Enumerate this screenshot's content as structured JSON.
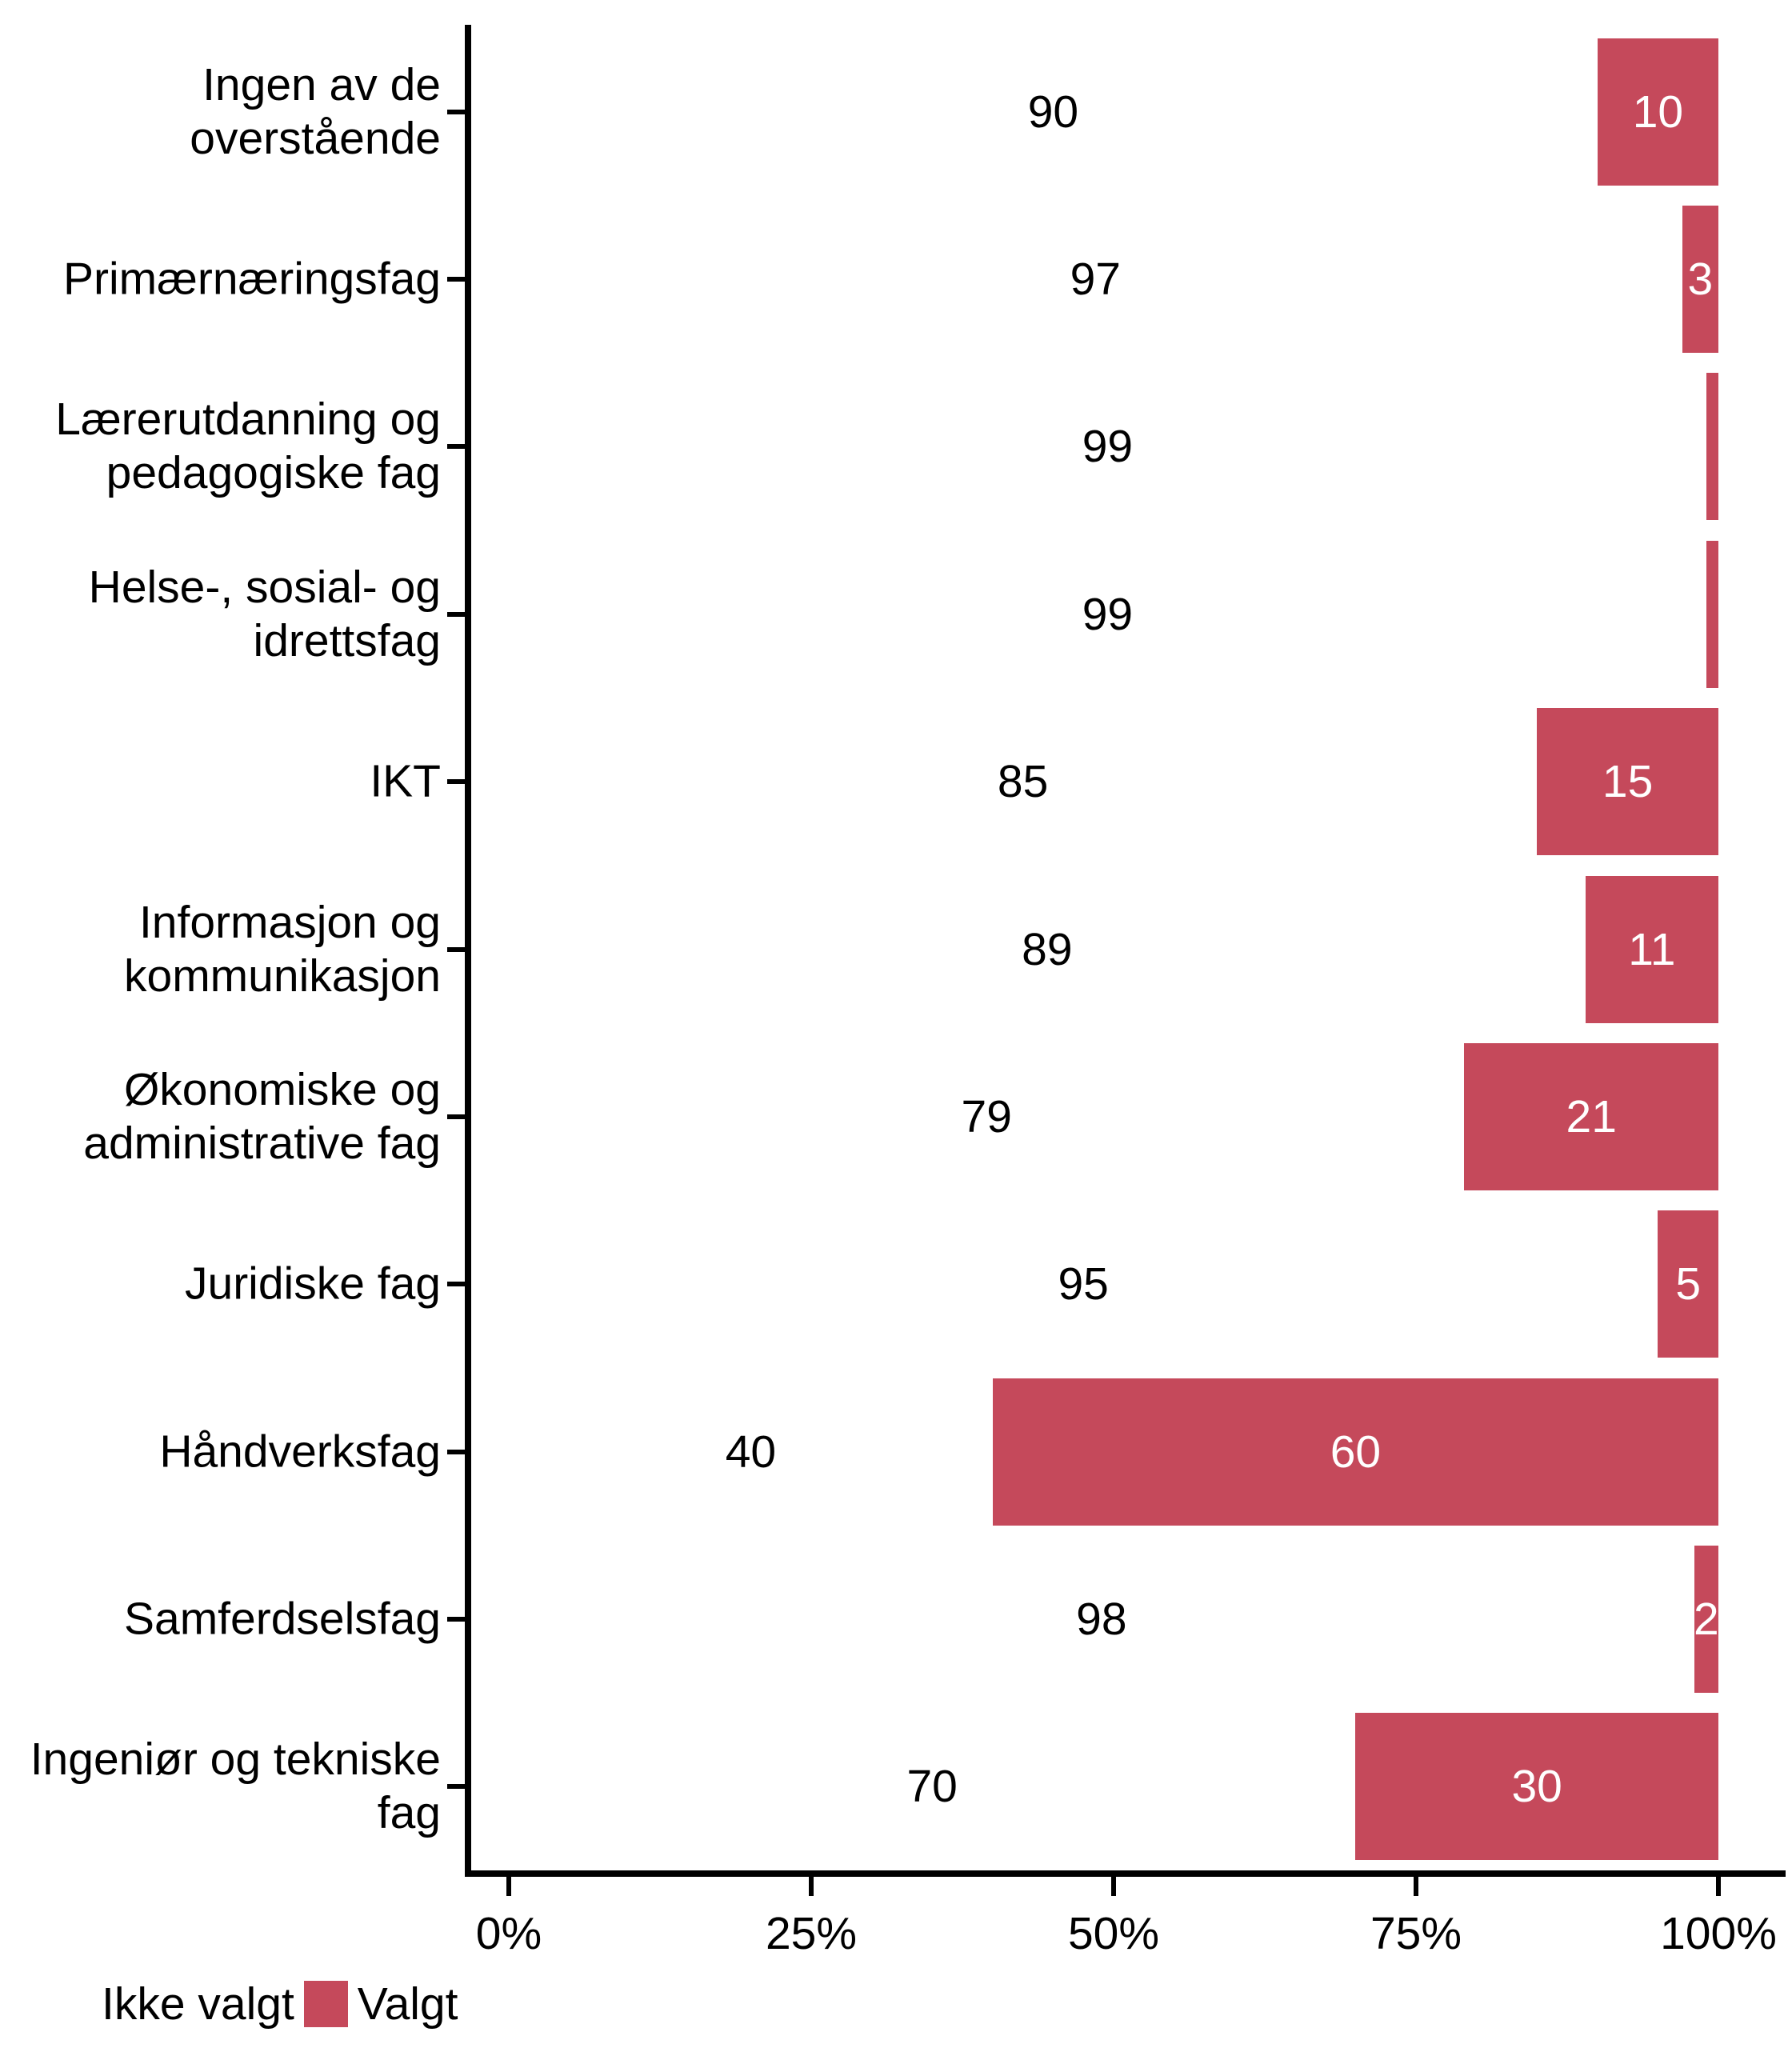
{
  "chart_data": {
    "type": "bar",
    "orientation": "horizontal",
    "stack_mode": "percent",
    "title": "",
    "xlabel": "",
    "ylabel": "",
    "xlim": [
      0,
      100
    ],
    "grid": false,
    "x_ticks": [
      {
        "label": "0%",
        "value": 0
      },
      {
        "label": "25%",
        "value": 25
      },
      {
        "label": "50%",
        "value": 50
      },
      {
        "label": "75%",
        "value": 75
      },
      {
        "label": "100%",
        "value": 100
      }
    ],
    "categories": [
      "Ingen av de overstående",
      "Primærnæringsfag",
      "Lærerutdanning og\npedagogiske fag",
      "Helse-, sosial- og\nidrettsfag",
      "IKT",
      "Informasjon og\nkommunikasjon",
      "Økonomiske og\nadministrative fag",
      "Juridiske fag",
      "Håndverksfag",
      "Samferdselsfag",
      "Ingeniør og tekniske fag"
    ],
    "series": [
      {
        "name": "Ikke valgt",
        "fill": "#ffffff",
        "label_color": "#000000",
        "values": [
          90,
          97,
          99,
          99,
          85,
          89,
          79,
          95,
          40,
          98,
          70
        ],
        "labels": [
          "90",
          "97",
          "99",
          "99",
          "85",
          "89",
          "79",
          "95",
          "40",
          "98",
          "70"
        ]
      },
      {
        "name": "Valgt",
        "fill": "#c5495b",
        "label_color": "#ffffff",
        "values": [
          10,
          3,
          1,
          1,
          15,
          11,
          21,
          5,
          60,
          2,
          30
        ],
        "labels": [
          "10",
          "3",
          "",
          "",
          "15",
          "11",
          "21",
          "5",
          "60",
          "2",
          "30"
        ]
      }
    ],
    "legend": {
      "position": "bottom-left",
      "items": [
        {
          "label": "Ikke valgt",
          "color": "#ffffff"
        },
        {
          "label": "Valgt",
          "color": "#c5495b"
        }
      ]
    }
  },
  "colors": {
    "accent_red": "#c5495b",
    "background": "#ffffff",
    "axis": "#000000",
    "text": "#000000"
  }
}
